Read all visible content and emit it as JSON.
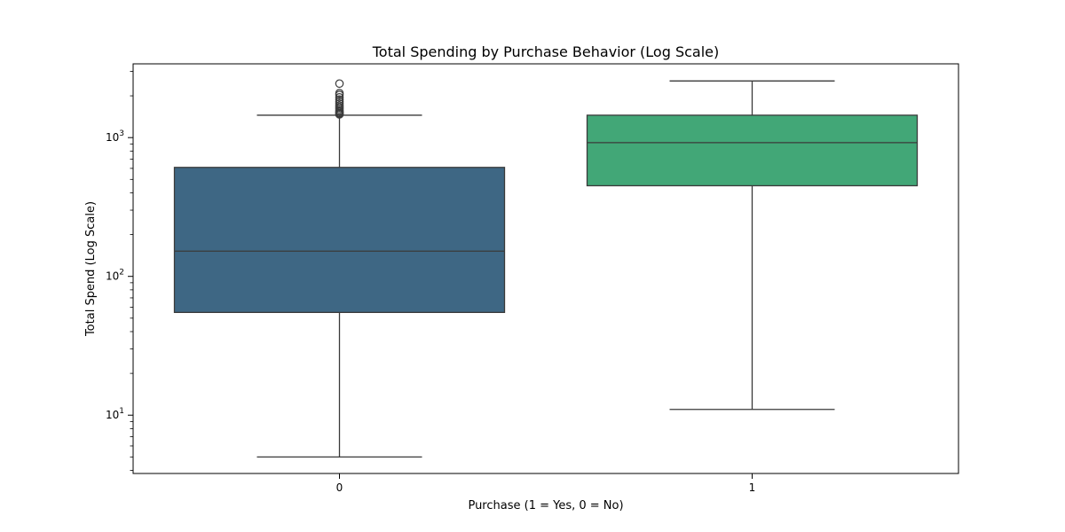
{
  "chart_data": {
    "type": "box",
    "title": "Total Spending by Purchase Behavior (Log Scale)",
    "xlabel": "Purchase (1 = Yes, 0 = No)",
    "ylabel": "Total Spend (Log Scale)",
    "yscale": "log",
    "ylim": [
      3.8,
      3400
    ],
    "categories": [
      "0",
      "1"
    ],
    "colors": [
      "#3e6784",
      "#42a777"
    ],
    "y_ticks": [
      {
        "value": 10,
        "base": "10",
        "exp": "1"
      },
      {
        "value": 100,
        "base": "10",
        "exp": "2"
      },
      {
        "value": 1000,
        "base": "10",
        "exp": "3"
      }
    ],
    "boxes": [
      {
        "category": "0",
        "whisker_low": 5,
        "q1": 55,
        "median": 152,
        "q3": 610,
        "whisker_high": 1450,
        "outliers": [
          1470,
          1490,
          1510,
          1540,
          1570,
          1610,
          1650,
          1700,
          1760,
          1820,
          1880,
          1950,
          2030,
          2090,
          2450
        ]
      },
      {
        "category": "1",
        "whisker_low": 11,
        "q1": 450,
        "median": 920,
        "q3": 1450,
        "whisker_high": 2560,
        "outliers": []
      }
    ],
    "grid": false,
    "legend": "none"
  }
}
